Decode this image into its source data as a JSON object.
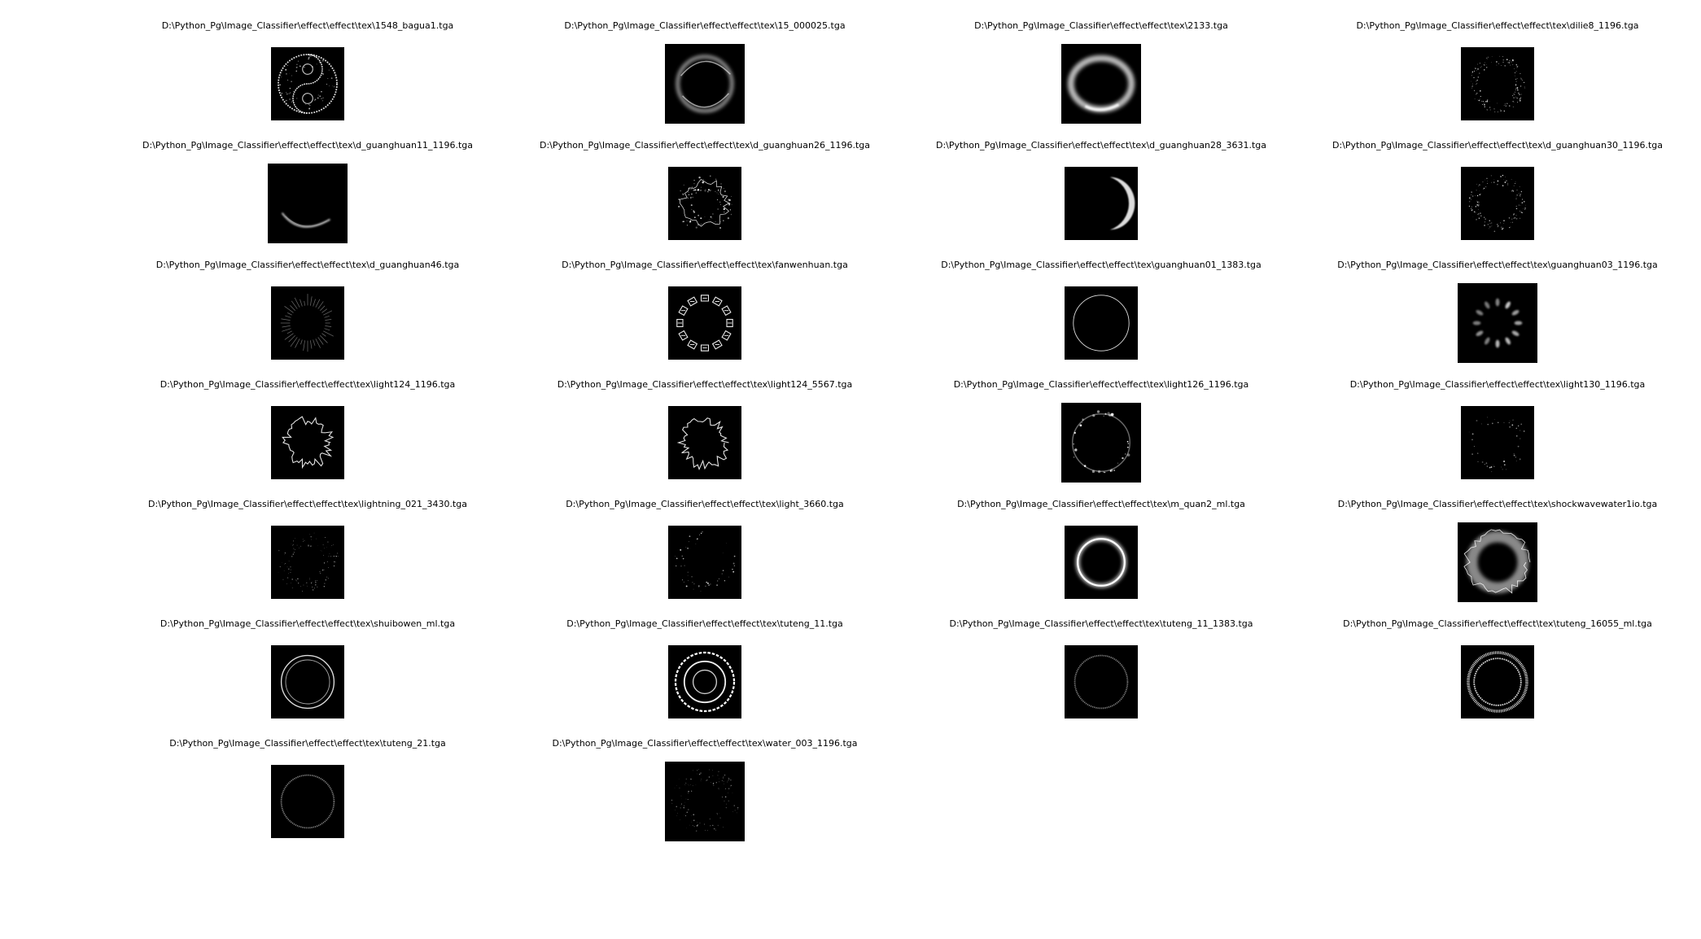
{
  "figure": {
    "images": [
      {
        "title": "D:\\Python_Pg\\Image_Classifier\\effect\\effect\\tex\\1548_bagua1.tga",
        "icon": "yin-yang-icon"
      },
      {
        "title": "D:\\Python_Pg\\Image_Classifier\\effect\\effect\\tex\\15_000025.tga",
        "icon": "wispy-ring-icon"
      },
      {
        "title": "D:\\Python_Pg\\Image_Classifier\\effect\\effect\\tex\\2133.tga",
        "icon": "glow-ring-icon"
      },
      {
        "title": "D:\\Python_Pg\\Image_Classifier\\effect\\effect\\tex\\dilie8_1196.tga",
        "icon": "dotted-ring-icon"
      },
      {
        "title": "D:\\Python_Pg\\Image_Classifier\\effect\\effect\\tex\\d_guanghuan11_1196.tga",
        "icon": "crescent-arc-icon"
      },
      {
        "title": "D:\\Python_Pg\\Image_Classifier\\effect\\effect\\tex\\d_guanghuan26_1196.tga",
        "icon": "swirl-ring-icon"
      },
      {
        "title": "D:\\Python_Pg\\Image_Classifier\\effect\\effect\\tex\\d_guanghuan28_3631.tga",
        "icon": "crescent-icon"
      },
      {
        "title": "D:\\Python_Pg\\Image_Classifier\\effect\\effect\\tex\\d_guanghuan30_1196.tga",
        "icon": "dotted-ring-icon"
      },
      {
        "title": "D:\\Python_Pg\\Image_Classifier\\effect\\effect\\tex\\d_guanghuan46.tga",
        "icon": "spiky-ring-icon"
      },
      {
        "title": "D:\\Python_Pg\\Image_Classifier\\effect\\effect\\tex\\fanwenhuan.tga",
        "icon": "glyph-ring-icon"
      },
      {
        "title": "D:\\Python_Pg\\Image_Classifier\\effect\\effect\\tex\\guanghuan01_1383.tga",
        "icon": "thin-ring-icon"
      },
      {
        "title": "D:\\Python_Pg\\Image_Classifier\\effect\\effect\\tex\\guanghuan03_1196.tga",
        "icon": "radial-glow-icon"
      },
      {
        "title": "D:\\Python_Pg\\Image_Classifier\\effect\\effect\\tex\\light124_1196.tga",
        "icon": "jagged-ring-icon"
      },
      {
        "title": "D:\\Python_Pg\\Image_Classifier\\effect\\effect\\tex\\light124_5567.tga",
        "icon": "jagged-ring-icon"
      },
      {
        "title": "D:\\Python_Pg\\Image_Classifier\\effect\\effect\\tex\\light126_1196.tga",
        "icon": "sparkle-ring-icon"
      },
      {
        "title": "D:\\Python_Pg\\Image_Classifier\\effect\\effect\\tex\\light130_1196.tga",
        "icon": "sparse-ring-icon"
      },
      {
        "title": "D:\\Python_Pg\\Image_Classifier\\effect\\effect\\tex\\lightning_021_3430.tga",
        "icon": "speckle-ring-icon"
      },
      {
        "title": "D:\\Python_Pg\\Image_Classifier\\effect\\effect\\tex\\light_3660.tga",
        "icon": "sparse-ring-icon"
      },
      {
        "title": "D:\\Python_Pg\\Image_Classifier\\effect\\effect\\tex\\m_quan2_ml.tga",
        "icon": "bright-ring-icon"
      },
      {
        "title": "D:\\Python_Pg\\Image_Classifier\\effect\\effect\\tex\\shockwavewater1io.tga",
        "icon": "shockwave-ring-icon"
      },
      {
        "title": "D:\\Python_Pg\\Image_Classifier\\effect\\effect\\tex\\shuibowen_ml.tga",
        "icon": "double-ring-icon"
      },
      {
        "title": "D:\\Python_Pg\\Image_Classifier\\effect\\effect\\tex\\tuteng_11.tga",
        "icon": "concentric-rings-icon"
      },
      {
        "title": "D:\\Python_Pg\\Image_Classifier\\effect\\effect\\tex\\tuteng_11_1383.tga",
        "icon": "faint-ring-icon"
      },
      {
        "title": "D:\\Python_Pg\\Image_Classifier\\effect\\effect\\tex\\tuteng_16055_ml.tga",
        "icon": "ornate-ring-icon"
      },
      {
        "title": "D:\\Python_Pg\\Image_Classifier\\effect\\effect\\tex\\tuteng_21.tga",
        "icon": "faint-ring-icon"
      },
      {
        "title": "D:\\Python_Pg\\Image_Classifier\\effect\\effect\\tex\\water_003_1196.tga",
        "icon": "speckle-ring-icon"
      }
    ]
  }
}
